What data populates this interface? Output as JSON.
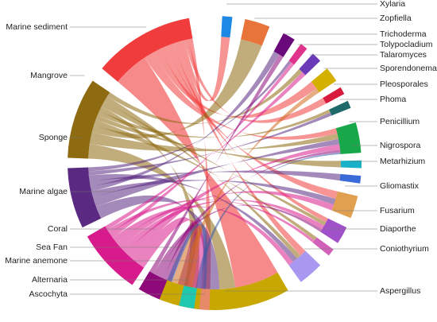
{
  "diagram": {
    "type": "chord",
    "source_groups": [
      {
        "name": "Marine sediment",
        "color": "#f03c3c"
      },
      {
        "name": "Mangrove",
        "color": "#8e6a10"
      },
      {
        "name": "Sponge",
        "color": "#5a2a82"
      },
      {
        "name": "Marine algae",
        "color": "#d81b8c"
      },
      {
        "name": "Coral",
        "color": "#8e0a7a"
      },
      {
        "name": "Sea Fan",
        "color": "#d2691e"
      },
      {
        "name": "Marine anemone",
        "color": "#3a5aa8"
      }
    ],
    "target_groups": [
      {
        "name": "Xylaria",
        "color": "#1e88e5"
      },
      {
        "name": "Zopfiella",
        "color": "#e8743b"
      },
      {
        "name": "Trichoderma",
        "color": "#6a0a7a"
      },
      {
        "name": "Tolypocladium",
        "color": "#e0338c"
      },
      {
        "name": "Talaromyces",
        "color": "#6a3ab8"
      },
      {
        "name": "Sporendonema",
        "color": "#d4b000"
      },
      {
        "name": "Pleosporales",
        "color": "#d81b3c"
      },
      {
        "name": "Phoma",
        "color": "#1e6a6a"
      },
      {
        "name": "Penicillium",
        "color": "#18a84a"
      },
      {
        "name": "Nigrospora",
        "color": "#1ab0c8"
      },
      {
        "name": "Metarhizium",
        "color": "#3a6ad8"
      },
      {
        "name": "Gliomastix",
        "color": "#e0a050"
      },
      {
        "name": "Fusarium",
        "color": "#a050c8"
      },
      {
        "name": "Diaporthe",
        "color": "#d060b8"
      },
      {
        "name": "Coniothyrium",
        "color": "#a898f0"
      },
      {
        "name": "Aspergillus",
        "color": "#c8a800"
      },
      {
        "name": "Ascochyta",
        "color": "#e88a6a"
      },
      {
        "name": "Alternaria",
        "color": "#20c8b0"
      }
    ]
  }
}
